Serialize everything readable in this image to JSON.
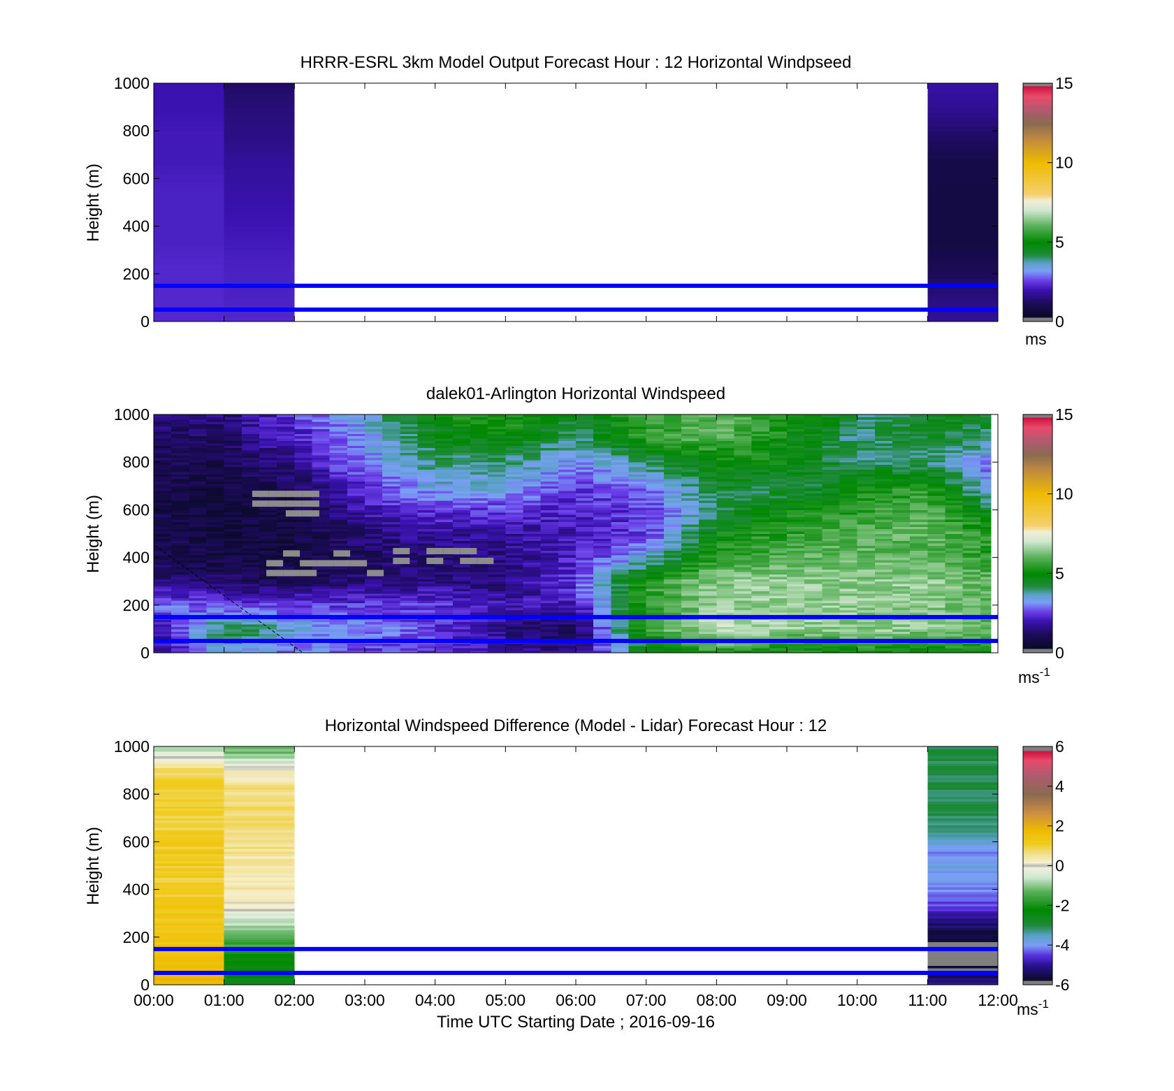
{
  "chart_data": [
    {
      "type": "heatmap",
      "title": "HRRR-ESRL 3km Model Output   Forecast Hour : 12 Horizontal Windpseed",
      "ylabel": "Height (m)",
      "ylim": [
        0,
        1000
      ],
      "yticks": [
        "0",
        "200",
        "400",
        "600",
        "800",
        "1000"
      ],
      "xlim": [
        0,
        12
      ],
      "colorbar": {
        "ticks": [
          "0",
          "5",
          "10",
          "15"
        ],
        "range": [
          0,
          15
        ],
        "unit": "ms"
      },
      "reference_lines_m": [
        50,
        150
      ],
      "columns": [
        {
          "x_start": 0,
          "x_end": 1,
          "speed_top_to_bottom": [
            2.0,
            2.0,
            2.1,
            2.1,
            2.2,
            2.2,
            2.2,
            2.3,
            2.3,
            2.3
          ]
        },
        {
          "x_start": 1,
          "x_end": 2,
          "speed_top_to_bottom": [
            1.3,
            1.5,
            1.6,
            1.8,
            1.9,
            2.0,
            2.1,
            2.2,
            2.2,
            2.3
          ]
        },
        {
          "x_start": 11,
          "x_end": 12,
          "speed_top_to_bottom": [
            1.9,
            1.7,
            1.3,
            0.9,
            0.8,
            0.8,
            0.8,
            1.1,
            1.5,
            1.8
          ]
        }
      ]
    },
    {
      "type": "heatmap",
      "title": "dalek01-Arlington  Horizontal Windspeed",
      "ylabel": "Height (m)",
      "ylim": [
        0,
        1000
      ],
      "yticks": [
        "0",
        "200",
        "400",
        "600",
        "800",
        "1000"
      ],
      "xlim": [
        0,
        12
      ],
      "colorbar": {
        "ticks": [
          "0",
          "5",
          "10",
          "15"
        ],
        "range": [
          0,
          15
        ],
        "unit_base": "ms",
        "unit_exp": "-1"
      },
      "reference_lines_m": [
        50,
        150
      ],
      "time_hours": [
        0,
        1,
        2,
        3,
        4,
        5,
        6,
        7,
        8,
        9,
        10,
        11,
        11.9
      ],
      "speed_top_to_bottom": [
        [
          1.5,
          1.6,
          2.5,
          3.5,
          5.0,
          5.5,
          4.5,
          5.5,
          6.0,
          5.5,
          4.0,
          4.5,
          4.5
        ],
        [
          1.2,
          1.3,
          2.2,
          3.2,
          4.5,
          5.0,
          4.0,
          5.5,
          6.0,
          5.0,
          4.0,
          4.5,
          4.0
        ],
        [
          1.0,
          1.0,
          1.8,
          3.0,
          4.0,
          4.0,
          3.0,
          4.0,
          5.0,
          5.0,
          4.0,
          4.0,
          3.0
        ],
        [
          1.0,
          0.8,
          1.2,
          2.5,
          3.5,
          3.5,
          2.5,
          3.0,
          4.5,
          4.0,
          5.0,
          5.5,
          3.0
        ],
        [
          1.0,
          0.7,
          0.9,
          2.0,
          2.5,
          2.5,
          2.2,
          2.5,
          4.0,
          5.0,
          5.5,
          6.0,
          4.5
        ],
        [
          1.0,
          0.7,
          0.8,
          1.5,
          1.8,
          1.8,
          2.0,
          2.5,
          5.0,
          5.5,
          6.0,
          6.0,
          5.5
        ],
        [
          1.0,
          0.8,
          0.8,
          1.2,
          1.4,
          1.6,
          2.2,
          3.5,
          5.5,
          6.0,
          6.0,
          6.0,
          5.5
        ],
        [
          1.5,
          1.3,
          1.0,
          1.5,
          1.6,
          1.5,
          2.5,
          5.5,
          6.5,
          6.5,
          6.5,
          6.5,
          6.0
        ],
        [
          3.0,
          2.5,
          2.5,
          2.5,
          2.5,
          2.0,
          2.0,
          5.5,
          6.5,
          6.5,
          6.5,
          6.5,
          6.0
        ],
        [
          1.5,
          4.5,
          3.5,
          3.0,
          2.5,
          1.5,
          1.0,
          5.5,
          7.0,
          6.5,
          6.5,
          6.5,
          6.0
        ],
        [
          1.5,
          3.5,
          3.0,
          2.5,
          2.5,
          2.0,
          1.5,
          4.5,
          5.5,
          5.0,
          5.0,
          5.0,
          5.0
        ]
      ],
      "missing_data_regions": [
        {
          "t0": 1.4,
          "t1": 2.3,
          "h0": 580,
          "h1": 680
        },
        {
          "t0": 1.6,
          "t1": 3.2,
          "h0": 340,
          "h1": 430
        },
        {
          "t0": 3.4,
          "t1": 4.6,
          "h0": 380,
          "h1": 440
        }
      ]
    },
    {
      "type": "heatmap",
      "title": "Horizontal Windspeed Difference (Model - Lidar) Forecast Hour : 12",
      "xlabel": "Time UTC  Starting Date ; 2016-09-16",
      "ylabel": "Height (m)",
      "ylim": [
        0,
        1000
      ],
      "yticks": [
        "0",
        "200",
        "400",
        "600",
        "800",
        "1000"
      ],
      "xlim": [
        0,
        12
      ],
      "xticks": [
        "00:00",
        "01:00",
        "02:00",
        "03:00",
        "04:00",
        "05:00",
        "06:00",
        "07:00",
        "08:00",
        "09:00",
        "10:00",
        "11:00",
        "12:00"
      ],
      "colorbar": {
        "ticks": [
          "6",
          "4",
          "2",
          "0",
          "-2",
          "-4",
          "-6"
        ],
        "range": [
          -6,
          6
        ],
        "unit_base": "ms",
        "unit_exp": "-1"
      },
      "reference_lines_m": [
        50,
        150
      ],
      "columns": [
        {
          "x_start": 0,
          "x_end": 1,
          "diff_top_to_bottom": [
            -0.8,
            0.9,
            1.1,
            1.0,
            1.2,
            1.1,
            1.2,
            1.3,
            1.5,
            1.8
          ]
        },
        {
          "x_start": 1,
          "x_end": 2,
          "diff_top_to_bottom": [
            -1.5,
            0.3,
            0.8,
            0.7,
            0.5,
            0.4,
            0.2,
            -1.2,
            -2.0,
            -2.5
          ]
        },
        {
          "x_start": 11,
          "x_end": 12,
          "diff_top_to_bottom": [
            -3.0,
            -3.0,
            -3.0,
            -3.2,
            -4.0,
            -3.8,
            -4.5,
            -5.5,
            -6.2,
            -5.0
          ]
        }
      ]
    }
  ]
}
